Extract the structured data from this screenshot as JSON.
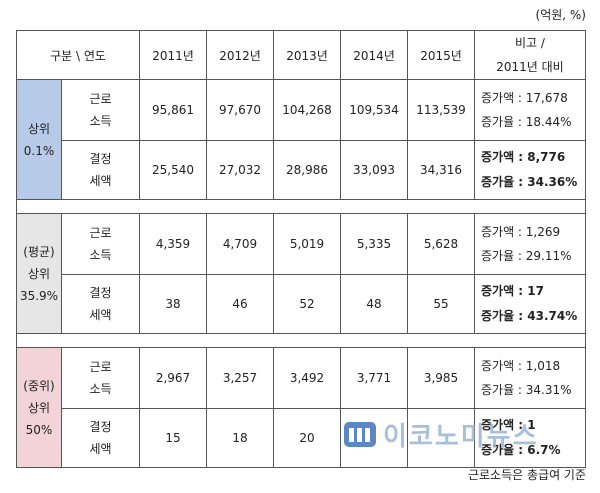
{
  "unit": "(억원, %)",
  "header": {
    "category": "구분 \\ 연도",
    "years": [
      "2011년",
      "2012년",
      "2013년",
      "2014년",
      "2015년"
    ],
    "note_line1": "비고 /",
    "note_line2": "2011년 대비"
  },
  "groups": [
    {
      "label_lines": [
        "상위",
        "0.1%"
      ],
      "color": "#b7cbe8",
      "rows": [
        {
          "name_lines": [
            "근로",
            "소득"
          ],
          "values": [
            "95,861",
            "97,670",
            "104,268",
            "109,534",
            "113,539"
          ],
          "note1": "증가액 : 17,678",
          "note2": "증가율 : 18.44%",
          "bold": false
        },
        {
          "name_lines": [
            "결정",
            "세액"
          ],
          "values": [
            "25,540",
            "27,032",
            "28,986",
            "33,093",
            "34,316"
          ],
          "note1": "증가액 : 8,776",
          "note2": "증가율 : 34.36%",
          "bold": true
        }
      ]
    },
    {
      "label_lines": [
        "(평균)",
        "상위",
        "35.9%"
      ],
      "color": "#e6e6e6",
      "rows": [
        {
          "name_lines": [
            "근로",
            "소득"
          ],
          "values": [
            "4,359",
            "4,709",
            "5,019",
            "5,335",
            "5,628"
          ],
          "note1": "증가액 : 1,269",
          "note2": "증가율 : 29.11%",
          "bold": false
        },
        {
          "name_lines": [
            "결정",
            "세액"
          ],
          "values": [
            "38",
            "46",
            "52",
            "48",
            "55"
          ],
          "note1": "증가액 : 17",
          "note2": "증가율 : 43.74%",
          "bold": true
        }
      ]
    },
    {
      "label_lines": [
        "(중위)",
        "상위",
        "50%"
      ],
      "color": "#f2d3d7",
      "rows": [
        {
          "name_lines": [
            "근로",
            "소득"
          ],
          "values": [
            "2,967",
            "3,257",
            "3,492",
            "3,771",
            "3,985"
          ],
          "note1": "증가액 : 1,018",
          "note2": "증가율 : 34.31%",
          "bold": false
        },
        {
          "name_lines": [
            "결정",
            "세액"
          ],
          "values": [
            "15",
            "18",
            "20",
            "",
            ""
          ],
          "note1": "증가액 : 1",
          "note2": "증가율 : 6.7%",
          "bold": true
        }
      ]
    }
  ],
  "footer": "근로소득은 총급여 기준",
  "watermark": "이코노미뉴스"
}
